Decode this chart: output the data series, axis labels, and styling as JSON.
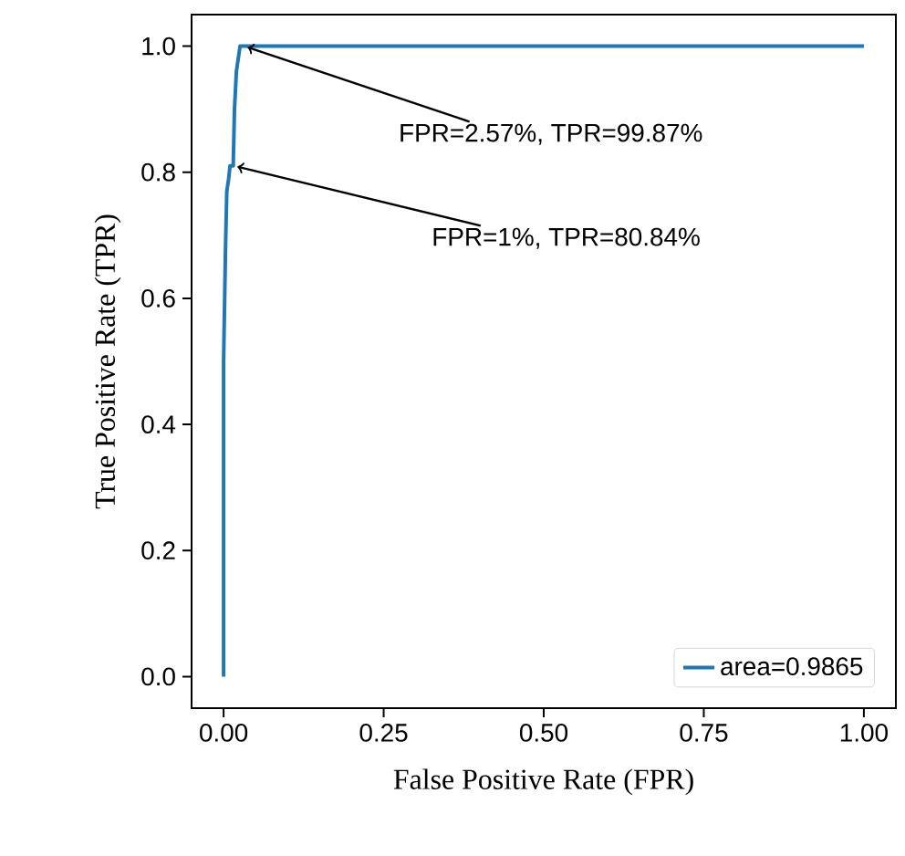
{
  "chart_data": {
    "type": "line",
    "xlabel": "False Positive Rate (FPR)",
    "ylabel": "True Positive Rate (TPR)",
    "x": [
      0,
      0,
      0.003,
      0.005,
      0.008,
      0.01,
      0.015,
      0.017,
      0.02,
      0.0257,
      1
    ],
    "series": [
      {
        "name": "area=0.9865",
        "color": "#1f77b4",
        "values": [
          0,
          0.5,
          0.68,
          0.77,
          0.79,
          0.81,
          0.81,
          0.9,
          0.96,
          1.0,
          1
        ]
      }
    ],
    "xlim": [
      -0.05,
      1.05
    ],
    "ylim": [
      -0.05,
      1.05
    ],
    "xticks": [
      {
        "value": 0,
        "label": "0.00"
      },
      {
        "value": 0.25,
        "label": "0.25"
      },
      {
        "value": 0.5,
        "label": "0.50"
      },
      {
        "value": 0.75,
        "label": "0.75"
      },
      {
        "value": 1,
        "label": "1.00"
      }
    ],
    "yticks": [
      {
        "value": 0,
        "label": "0.0"
      },
      {
        "value": 0.2,
        "label": "0.2"
      },
      {
        "value": 0.4,
        "label": "0.4"
      },
      {
        "value": 0.6,
        "label": "0.6"
      },
      {
        "value": 0.8,
        "label": "0.8"
      },
      {
        "value": 1,
        "label": "1.0"
      }
    ],
    "annotations": [
      {
        "text": "FPR=2.57%, TPR=99.87%",
        "x": 0.026,
        "y": 1.0
      },
      {
        "text": "FPR=1%, TPR=80.84%",
        "x": 0.01,
        "y": 0.81
      }
    ],
    "legend": "bottom right",
    "grid": false,
    "marker": "none",
    "line_style": "solid"
  }
}
